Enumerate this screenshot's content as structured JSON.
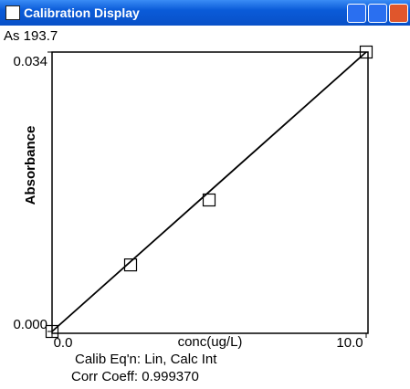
{
  "window": {
    "title": "Calibration Display"
  },
  "chart_data": {
    "type": "scatter",
    "subtitle": "As 193.7",
    "x_label": "conc(ug/L)",
    "y_label": "Absorbance",
    "annotations": [
      "Calib Eq'n: Lin, Calc Int",
      "Corr Coeff: 0.999370"
    ],
    "x": [
      0,
      2.5,
      5,
      10
    ],
    "values": [
      0,
      0.0081,
      0.016,
      0.034
    ],
    "fit": {
      "x": [
        0,
        10
      ],
      "values": [
        0,
        0.034
      ],
      "color": "#000000"
    },
    "color": "#000000",
    "xlim": [
      0,
      10
    ],
    "ylim": [
      0,
      0.034
    ],
    "xticks": [
      {
        "value": 0,
        "label": "0.0"
      },
      {
        "value": 10,
        "label": "10.0"
      }
    ],
    "yticks": [
      {
        "value": 0,
        "label": "0.000"
      },
      {
        "value": 0.034,
        "label": "0.034"
      }
    ]
  }
}
